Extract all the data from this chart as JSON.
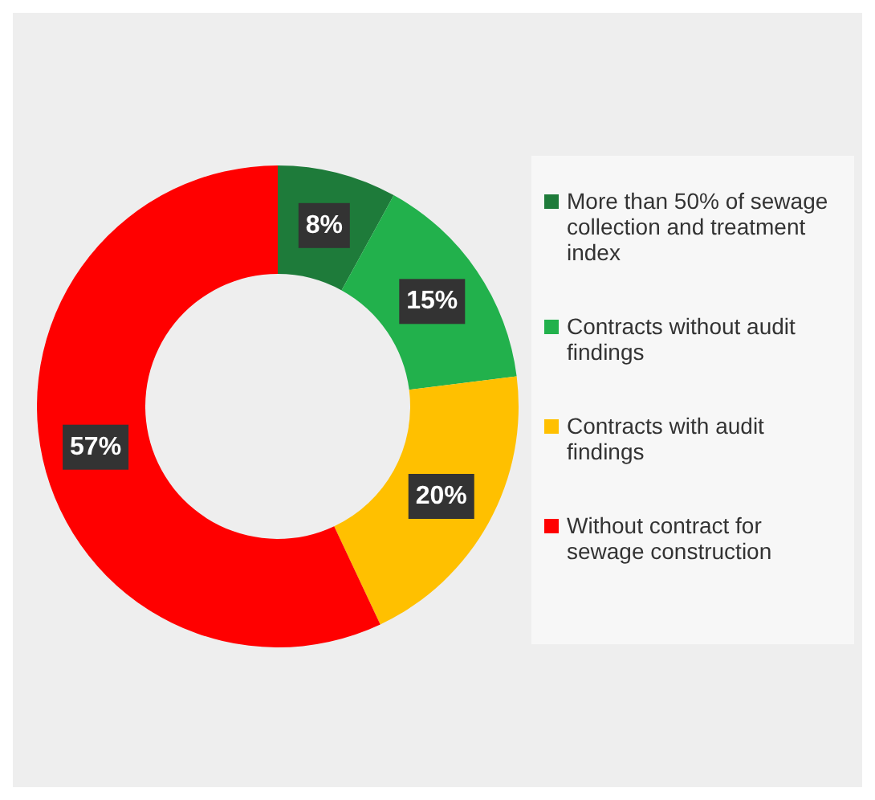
{
  "chart_data": {
    "type": "donut",
    "categories": [
      "More than 50% of sewage collection and treatment index",
      "Contracts without audit findings",
      "Contracts with audit findings",
      "Without contract for sewage construction"
    ],
    "values": [
      8,
      15,
      20,
      57
    ],
    "colors": [
      "#1e7b3a",
      "#22b14c",
      "#ffc000",
      "#ff0000"
    ],
    "value_labels": [
      "8%",
      "15%",
      "20%",
      "57%"
    ],
    "legend": "right"
  }
}
